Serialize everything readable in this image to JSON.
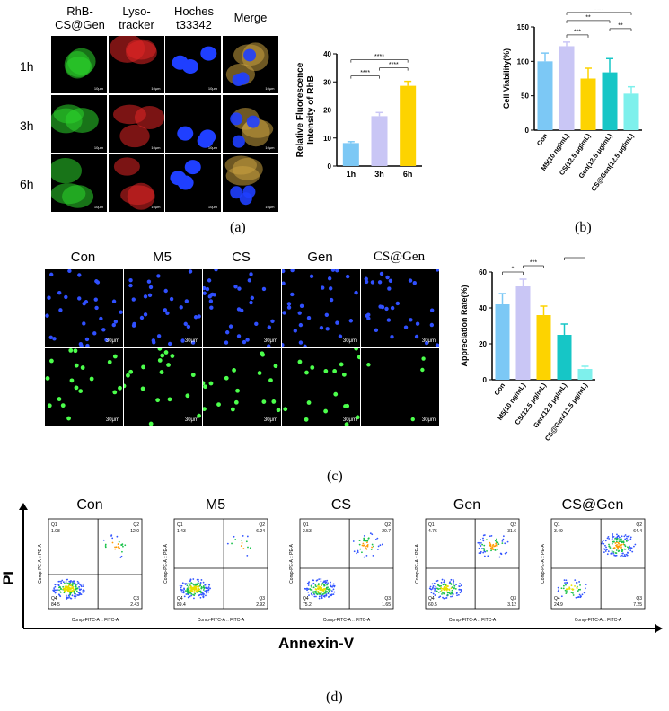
{
  "panel_a": {
    "label": "(a)",
    "columns": [
      "RhB-\nCS@Gen",
      "Lyso-\ntracker",
      "Hoches\nt33342",
      "Merge"
    ],
    "rows": [
      "1h",
      "3h",
      "6h"
    ],
    "scale": "10μm"
  },
  "panel_b": {
    "label": "(b)"
  },
  "panel_c": {
    "label": "(c)",
    "columns": [
      "Con",
      "M5",
      "CS",
      "Gen",
      "CS@Gen"
    ],
    "scale": "30μm"
  },
  "panel_d": {
    "label": "(d)",
    "xtitle": "Annexin-V",
    "ytitle": "PI",
    "axis_x_label": "Comp-FITC-A :: FITC-A",
    "axis_y_label": "Comp-PE-A :: PE-A",
    "plots": [
      {
        "title": "Con",
        "q1": "1.08",
        "q2": "12.0",
        "q3": "2.43",
        "q4": "84.5"
      },
      {
        "title": "M5",
        "q1": "1.43",
        "q2": "6.24",
        "q3": "2.92",
        "q4": "89.4"
      },
      {
        "title": "CS",
        "q1": "2.53",
        "q2": "20.7",
        "q3": "1.65",
        "q4": "75.2"
      },
      {
        "title": "Gen",
        "q1": "4.76",
        "q2": "31.6",
        "q3": "3.12",
        "q4": "60.5"
      },
      {
        "title": "CS@Gen",
        "q1": "3.49",
        "q2": "64.4",
        "q3": "7.25",
        "q4": "24.9"
      }
    ]
  },
  "colors": {
    "green": "#2bd42b",
    "red": "#e02424",
    "blue": "#1f3fff",
    "bar_1h": "#7cc8f5",
    "bar_3h": "#c9c6f5",
    "bar_6h": "#fdd300",
    "bar_con": "#7cc8f5",
    "bar_m5": "#c9c6f5",
    "bar_cs": "#fdd300",
    "bar_gen": "#16c6c6",
    "bar_csgen": "#7ef0ec"
  },
  "chart_data": [
    {
      "type": "bar",
      "ylabel": "Relative Fluorescence\nIntensity of RhB",
      "categories": [
        "1h",
        "3h",
        "6h"
      ],
      "values": [
        8.2,
        17.8,
        28.6
      ],
      "errors": [
        0.5,
        1.3,
        1.6
      ],
      "ylim": [
        0,
        40
      ],
      "yticks": [
        0,
        10,
        20,
        30,
        40
      ],
      "significance": [
        {
          "from": 0,
          "to": 1,
          "text": "****"
        },
        {
          "from": 0,
          "to": 2,
          "text": "****"
        },
        {
          "from": 1,
          "to": 2,
          "text": "****"
        }
      ]
    },
    {
      "type": "bar",
      "ylabel": "Cell Viability(%)",
      "categories": [
        "Con",
        "M5(10 ng/mL)",
        "CS(12.5 μg/mL)",
        "Gen(12.5 μg/mL)",
        "CS@Gen(12.5 μg/mL)"
      ],
      "values": [
        100,
        122,
        75,
        84,
        53
      ],
      "errors": [
        12,
        6,
        15,
        20,
        10
      ],
      "ylim": [
        0,
        150
      ],
      "yticks": [
        0,
        50,
        100,
        150
      ],
      "significance": [
        {
          "from": 1,
          "to": 2,
          "text": "***"
        },
        {
          "from": 1,
          "to": 3,
          "text": "**"
        },
        {
          "from": 1,
          "to": 4,
          "text": "****"
        },
        {
          "from": 3,
          "to": 4,
          "text": "**"
        }
      ]
    },
    {
      "type": "bar",
      "ylabel": "Appreciation Rate(%)",
      "categories": [
        "Con",
        "M5(10 ng/mL)",
        "CS(12.5 μg/mL)",
        "Gen(12.5 μg/mL)",
        "CS@Gen(12.5 μg/mL)"
      ],
      "values": [
        42,
        52,
        36,
        25,
        6
      ],
      "errors": [
        6,
        4,
        5,
        6,
        1.5
      ],
      "ylim": [
        0,
        60
      ],
      "yticks": [
        0,
        20,
        40,
        60
      ],
      "significance": [
        {
          "from": 0,
          "to": 1,
          "text": "*"
        },
        {
          "from": 1,
          "to": 2,
          "text": "***"
        },
        {
          "from": 1,
          "to": 3,
          "text": "****"
        },
        {
          "from": 1,
          "to": 4,
          "text": "****"
        },
        {
          "from": 3,
          "to": 4,
          "text": "****"
        }
      ]
    }
  ]
}
